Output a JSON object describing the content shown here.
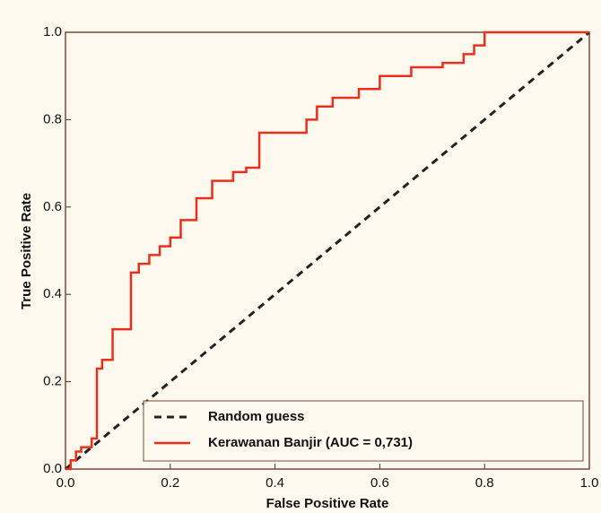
{
  "chart_data": {
    "type": "line",
    "xlabel": "False Positive Rate",
    "ylabel": "True Positive Rate",
    "xlim": [
      0,
      1
    ],
    "ylim": [
      0,
      1
    ],
    "xticks": [
      {
        "value": 0,
        "label": "0.0"
      },
      0.2,
      0.4,
      0.6,
      0.8,
      {
        "value": 1,
        "label": "1.0"
      }
    ],
    "yticks": [
      {
        "value": 0,
        "label": "0.0"
      },
      0.2,
      0.4,
      0.6,
      0.8,
      {
        "value": 1,
        "label": "1.0"
      }
    ],
    "legend": "lower right",
    "series": [
      {
        "name": "Random guess",
        "color": "#222222",
        "dashed": true,
        "x": [
          0,
          1
        ],
        "values": [
          0,
          1
        ]
      },
      {
        "name": "Kerawanan Banjir (AUC = 0,731)",
        "color": "#e8301c",
        "dashed": false,
        "x": [
          0,
          0.01,
          0.01,
          0.02,
          0.02,
          0.03,
          0.03,
          0.05,
          0.05,
          0.06,
          0.06,
          0.07,
          0.07,
          0.09,
          0.09,
          0.125,
          0.125,
          0.14,
          0.14,
          0.16,
          0.16,
          0.18,
          0.18,
          0.2,
          0.2,
          0.22,
          0.22,
          0.25,
          0.25,
          0.28,
          0.28,
          0.32,
          0.32,
          0.345,
          0.345,
          0.37,
          0.37,
          0.46,
          0.46,
          0.48,
          0.48,
          0.51,
          0.51,
          0.56,
          0.56,
          0.6,
          0.6,
          0.66,
          0.66,
          0.72,
          0.72,
          0.76,
          0.76,
          0.78,
          0.78,
          0.8,
          0.8,
          1
        ],
        "values": [
          0,
          0,
          0.02,
          0.02,
          0.04,
          0.04,
          0.05,
          0.05,
          0.07,
          0.07,
          0.23,
          0.23,
          0.25,
          0.25,
          0.32,
          0.32,
          0.45,
          0.45,
          0.47,
          0.47,
          0.49,
          0.49,
          0.51,
          0.51,
          0.53,
          0.53,
          0.57,
          0.57,
          0.62,
          0.62,
          0.66,
          0.66,
          0.68,
          0.68,
          0.69,
          0.69,
          0.77,
          0.77,
          0.8,
          0.8,
          0.83,
          0.83,
          0.85,
          0.85,
          0.87,
          0.87,
          0.9,
          0.9,
          0.92,
          0.92,
          0.93,
          0.93,
          0.95,
          0.95,
          0.97,
          0.97,
          1,
          1
        ]
      }
    ]
  }
}
